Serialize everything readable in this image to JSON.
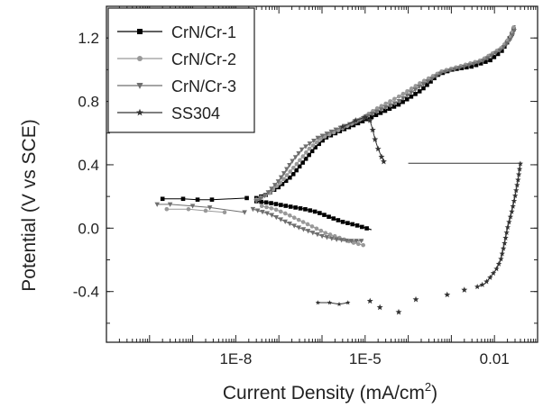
{
  "chart_data": {
    "type": "scatter",
    "title": "",
    "xlabel": "Current Density (mA/cm",
    "xlabel_sup": "2",
    "xlabel_close": ")",
    "ylabel": "Potential (V vs SCE)",
    "x_scale": "log",
    "xlim": [
      1e-11,
      0.1
    ],
    "ylim": [
      -0.72,
      1.4
    ],
    "x_ticks": [
      {
        "value": 1e-08,
        "label": "1E-8"
      },
      {
        "value": 1e-05,
        "label": "1E-5"
      },
      {
        "value": 0.01,
        "label": "0.01"
      }
    ],
    "y_ticks": [
      {
        "value": -0.4,
        "label": "-0.4"
      },
      {
        "value": 0.0,
        "label": "0.0"
      },
      {
        "value": 0.4,
        "label": "0.4"
      },
      {
        "value": 0.8,
        "label": "0.8"
      },
      {
        "value": 1.2,
        "label": "1.2"
      }
    ],
    "grid": false,
    "legend_position": "top-left",
    "series": [
      {
        "name": "CrN/Cr-1",
        "color": "#000000",
        "marker": "square",
        "anodic": [
          [
            3e-08,
            0.19
          ],
          [
            5e-08,
            0.21
          ],
          [
            1e-07,
            0.26
          ],
          [
            2e-07,
            0.33
          ],
          [
            4e-07,
            0.43
          ],
          [
            7e-07,
            0.51
          ],
          [
            1.2e-06,
            0.57
          ],
          [
            3e-06,
            0.62
          ],
          [
            8e-06,
            0.67
          ],
          [
            2e-05,
            0.72
          ],
          [
            6e-05,
            0.78
          ],
          [
            0.0002,
            0.87
          ],
          [
            0.0005,
            0.97
          ],
          [
            0.001,
            1.0
          ],
          [
            0.003,
            1.02
          ],
          [
            0.008,
            1.06
          ],
          [
            0.015,
            1.12
          ],
          [
            0.025,
            1.22
          ],
          [
            0.03,
            1.28
          ]
        ],
        "cathodic": [
          [
            3e-08,
            0.17
          ],
          [
            6e-08,
            0.16
          ],
          [
            1.5e-07,
            0.14
          ],
          [
            4e-07,
            0.12
          ],
          [
            8e-07,
            0.1
          ],
          [
            1.5e-06,
            0.07
          ],
          [
            3e-06,
            0.04
          ],
          [
            6e-06,
            0.02
          ],
          [
            1.4e-05,
            -0.01
          ]
        ],
        "low_points": [
          [
            2e-10,
            0.185
          ],
          [
            6e-10,
            0.185
          ],
          [
            1.3e-09,
            0.18
          ],
          [
            2.8e-09,
            0.18
          ],
          [
            1.8e-08,
            0.19
          ]
        ]
      },
      {
        "name": "CrN/Cr-2",
        "color": "#999999",
        "marker": "circle",
        "anodic": [
          [
            3e-08,
            0.18
          ],
          [
            6e-08,
            0.22
          ],
          [
            1.2e-07,
            0.3
          ],
          [
            2.5e-07,
            0.4
          ],
          [
            5e-07,
            0.5
          ],
          [
            1e-06,
            0.57
          ],
          [
            2.5e-06,
            0.62
          ],
          [
            7e-06,
            0.68
          ],
          [
            2e-05,
            0.76
          ],
          [
            6e-05,
            0.83
          ],
          [
            0.0002,
            0.92
          ],
          [
            0.0006,
            0.99
          ],
          [
            0.0015,
            1.02
          ],
          [
            0.005,
            1.06
          ],
          [
            0.015,
            1.14
          ],
          [
            0.025,
            1.22
          ],
          [
            0.028,
            1.27
          ]
        ],
        "cathodic": [
          [
            4e-08,
            0.14
          ],
          [
            8e-08,
            0.12
          ],
          [
            1.5e-07,
            0.09
          ],
          [
            3e-07,
            0.05
          ],
          [
            6e-07,
            0.01
          ],
          [
            1.2e-06,
            -0.03
          ],
          [
            2.5e-06,
            -0.06
          ],
          [
            5e-06,
            -0.09
          ],
          [
            1e-05,
            -0.11
          ]
        ],
        "low_points": [
          [
            2.5e-10,
            0.12
          ],
          [
            8e-10,
            0.12
          ],
          [
            2e-09,
            0.11
          ],
          [
            5.5e-09,
            0.1
          ]
        ]
      },
      {
        "name": "CrN/Cr-3",
        "color": "#6f6f6f",
        "marker": "triangle-down",
        "anodic": [
          [
            3e-08,
            0.17
          ],
          [
            5e-08,
            0.21
          ],
          [
            1e-07,
            0.3
          ],
          [
            2e-07,
            0.42
          ],
          [
            3.5e-07,
            0.5
          ],
          [
            8e-07,
            0.57
          ],
          [
            2e-06,
            0.62
          ],
          [
            6e-06,
            0.67
          ],
          [
            2e-05,
            0.74
          ],
          [
            6e-05,
            0.8
          ],
          [
            0.0002,
            0.9
          ],
          [
            0.0006,
            0.98
          ],
          [
            0.0015,
            1.01
          ],
          [
            0.005,
            1.05
          ],
          [
            0.015,
            1.13
          ],
          [
            0.025,
            1.2
          ],
          [
            0.03,
            1.26
          ]
        ],
        "cathodic": [
          [
            2.5e-08,
            0.12
          ],
          [
            6e-08,
            0.09
          ],
          [
            1.2e-07,
            0.05
          ],
          [
            2.5e-07,
            0.01
          ],
          [
            5e-07,
            -0.02
          ],
          [
            1e-06,
            -0.05
          ],
          [
            2e-06,
            -0.07
          ],
          [
            4e-06,
            -0.08
          ],
          [
            9e-06,
            -0.08
          ]
        ],
        "low_points": [
          [
            1.5e-10,
            0.15
          ],
          [
            3e-10,
            0.15
          ],
          [
            1e-09,
            0.14
          ],
          [
            2.5e-09,
            0.13
          ],
          [
            1.6e-08,
            0.1
          ]
        ]
      },
      {
        "name": "SS304",
        "color": "#333333",
        "marker": "star",
        "main": [
          [
            3e-06,
            0.64
          ],
          [
            6e-06,
            0.68
          ],
          [
            1e-05,
            0.7
          ],
          [
            1.3e-05,
            0.68
          ],
          [
            1.5e-05,
            0.62
          ],
          [
            1.7e-05,
            0.56
          ],
          [
            2e-05,
            0.5
          ],
          [
            2.4e-05,
            0.45
          ],
          [
            2.7e-05,
            0.42
          ]
        ],
        "passive_line": [
          [
            0.0001,
            0.41
          ],
          [
            0.04,
            0.41
          ]
        ],
        "vertical_dashes": [
          [
            0.035,
            0.41
          ],
          [
            0.035,
            0.3
          ]
        ],
        "rise": [
          [
            0.004,
            -0.37
          ],
          [
            0.006,
            -0.35
          ],
          [
            0.008,
            -0.31
          ],
          [
            0.011,
            -0.26
          ],
          [
            0.014,
            -0.2
          ],
          [
            0.017,
            -0.1
          ],
          [
            0.02,
            0.0
          ],
          [
            0.025,
            0.1
          ],
          [
            0.03,
            0.2
          ],
          [
            0.035,
            0.3
          ],
          [
            0.04,
            0.41
          ]
        ],
        "sparse": [
          [
            1.3e-05,
            -0.46
          ],
          [
            2.2e-05,
            -0.5
          ],
          [
            6e-05,
            -0.53
          ],
          [
            0.00015,
            -0.45
          ],
          [
            0.0008,
            -0.42
          ],
          [
            0.002,
            -0.39
          ]
        ],
        "low_dashes": [
          [
            8e-07,
            -0.47
          ],
          [
            1.5e-06,
            -0.47
          ],
          [
            2.5e-06,
            -0.48
          ],
          [
            4e-06,
            -0.47
          ]
        ]
      }
    ]
  }
}
